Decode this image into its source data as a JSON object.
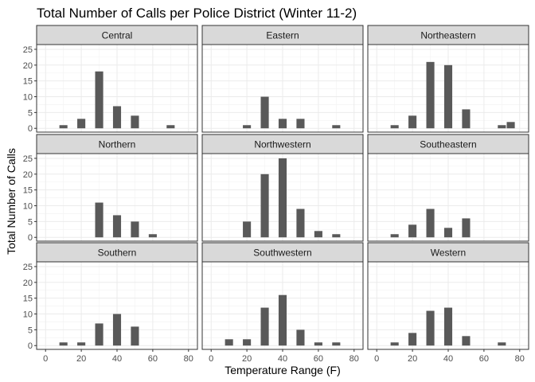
{
  "chart_data": {
    "type": "bar",
    "title": "Total Number of Calls per Police District (Winter 11-2)",
    "xlabel": "Temperature Range (F)",
    "ylabel": "Total Number of Calls",
    "xlim": [
      -5,
      85
    ],
    "ylim": [
      -1.2,
      26.5
    ],
    "xticks": [
      0,
      20,
      40,
      60,
      80
    ],
    "yticks": [
      0,
      5,
      10,
      15,
      20,
      25
    ],
    "grid": true,
    "bar_width": 4.5,
    "bar_color": "#595959",
    "strip_fill": "#d9d9d9",
    "facet_rows": 3,
    "facet_cols": 3,
    "panels": [
      {
        "name": "Central",
        "x": [
          10,
          20,
          30,
          40,
          50,
          70
        ],
        "values": [
          1,
          3,
          18,
          7,
          4,
          1
        ]
      },
      {
        "name": "Eastern",
        "x": [
          20,
          30,
          40,
          50,
          70
        ],
        "values": [
          1,
          10,
          3,
          3,
          1
        ]
      },
      {
        "name": "Northeastern",
        "x": [
          10,
          20,
          30,
          40,
          50,
          70,
          75
        ],
        "values": [
          1,
          4,
          21,
          20,
          6,
          1,
          2
        ]
      },
      {
        "name": "Northern",
        "x": [
          30,
          40,
          50,
          60
        ],
        "values": [
          11,
          7,
          5,
          1
        ]
      },
      {
        "name": "Northwestern",
        "x": [
          20,
          30,
          40,
          50,
          60,
          70
        ],
        "values": [
          5,
          20,
          25,
          9,
          2,
          1
        ]
      },
      {
        "name": "Southeastern",
        "x": [
          10,
          20,
          30,
          40,
          50
        ],
        "values": [
          1,
          4,
          9,
          3,
          6
        ]
      },
      {
        "name": "Southern",
        "x": [
          10,
          20,
          30,
          40,
          50
        ],
        "values": [
          1,
          1,
          7,
          10,
          6
        ]
      },
      {
        "name": "Southwestern",
        "x": [
          10,
          20,
          30,
          40,
          50,
          60,
          70
        ],
        "values": [
          2,
          2,
          12,
          16,
          5,
          1,
          1
        ]
      },
      {
        "name": "Western",
        "x": [
          10,
          20,
          30,
          40,
          50,
          70
        ],
        "values": [
          1,
          4,
          11,
          12,
          3,
          1
        ]
      }
    ]
  }
}
